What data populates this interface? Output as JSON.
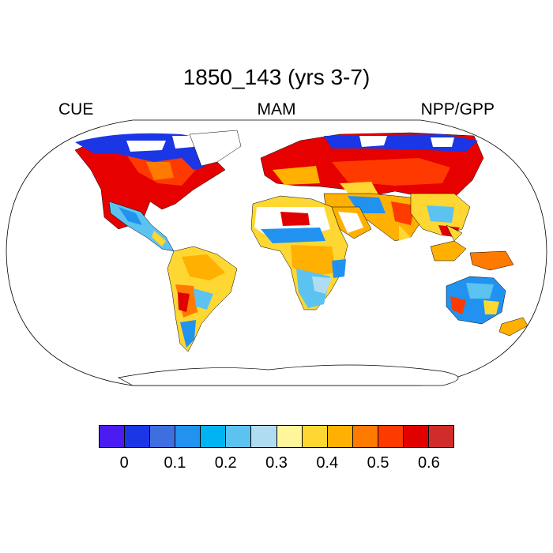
{
  "figure": {
    "title": "1850_143 (yrs 3-7)",
    "left_label": "CUE",
    "center_label": "MAM",
    "right_label": "NPP/GPP"
  },
  "map": {
    "projection": "Robinson",
    "land_fill": "#ffffff",
    "missing_regions": [
      "Greenland",
      "Antarctica",
      "Sahara core",
      "Arabian interior"
    ]
  },
  "colorbar": {
    "colors": [
      "#4b1cf2",
      "#1a36e5",
      "#3f6ee0",
      "#2192f0",
      "#00b3f3",
      "#5cc3f1",
      "#b0dcf1",
      "#fff59a",
      "#ffd732",
      "#ffb000",
      "#ff7a00",
      "#ff3a00",
      "#e00000",
      "#d02c2c"
    ],
    "tick_labels": [
      "0",
      "0.1",
      "0.2",
      "0.3",
      "0.4",
      "0.5",
      "0.6"
    ]
  }
}
